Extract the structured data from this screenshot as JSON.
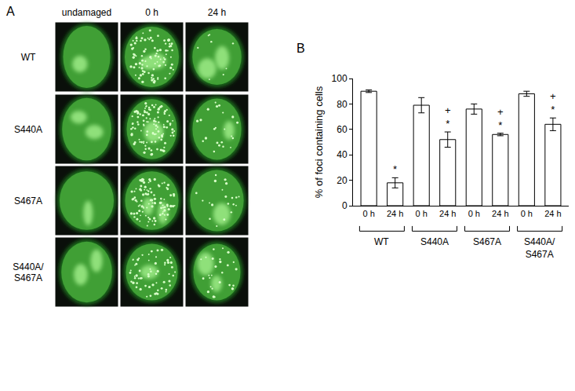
{
  "panel_a": {
    "label": "A",
    "columns": [
      "undamaged",
      "0 h",
      "24 h"
    ],
    "rows": [
      [
        "WT"
      ],
      [
        "S440A"
      ],
      [
        "S467A"
      ],
      [
        "S440A/",
        "S467A"
      ]
    ]
  },
  "chart_data": {
    "type": "bar",
    "panel_label": "B",
    "ylabel": "% of foci containing cells",
    "groups": [
      {
        "label": [
          "WT"
        ],
        "categories": [
          "0 h",
          "24 h"
        ],
        "values": [
          90,
          18
        ],
        "errors": [
          1,
          4
        ],
        "significance": [
          [],
          [
            "*"
          ]
        ]
      },
      {
        "label": [
          "S440A"
        ],
        "categories": [
          "0 h",
          "24 h"
        ],
        "values": [
          79,
          52
        ],
        "errors": [
          6,
          6
        ],
        "significance": [
          [],
          [
            "+",
            "*"
          ]
        ]
      },
      {
        "label": [
          "S467A"
        ],
        "categories": [
          "0 h",
          "24 h"
        ],
        "values": [
          76,
          56
        ],
        "errors": [
          4,
          1
        ],
        "significance": [
          [],
          [
            "+",
            "*"
          ]
        ]
      },
      {
        "label": [
          "S440A/",
          "S467A"
        ],
        "categories": [
          "0 h",
          "24 h"
        ],
        "values": [
          88,
          64
        ],
        "errors": [
          2,
          5
        ],
        "significance": [
          [],
          [
            "+",
            "*"
          ]
        ]
      }
    ],
    "color": "#ffffff",
    "ylim": [
      0,
      100
    ],
    "yticks": [
      0,
      20,
      40,
      60,
      80,
      100
    ],
    "grid": false
  }
}
